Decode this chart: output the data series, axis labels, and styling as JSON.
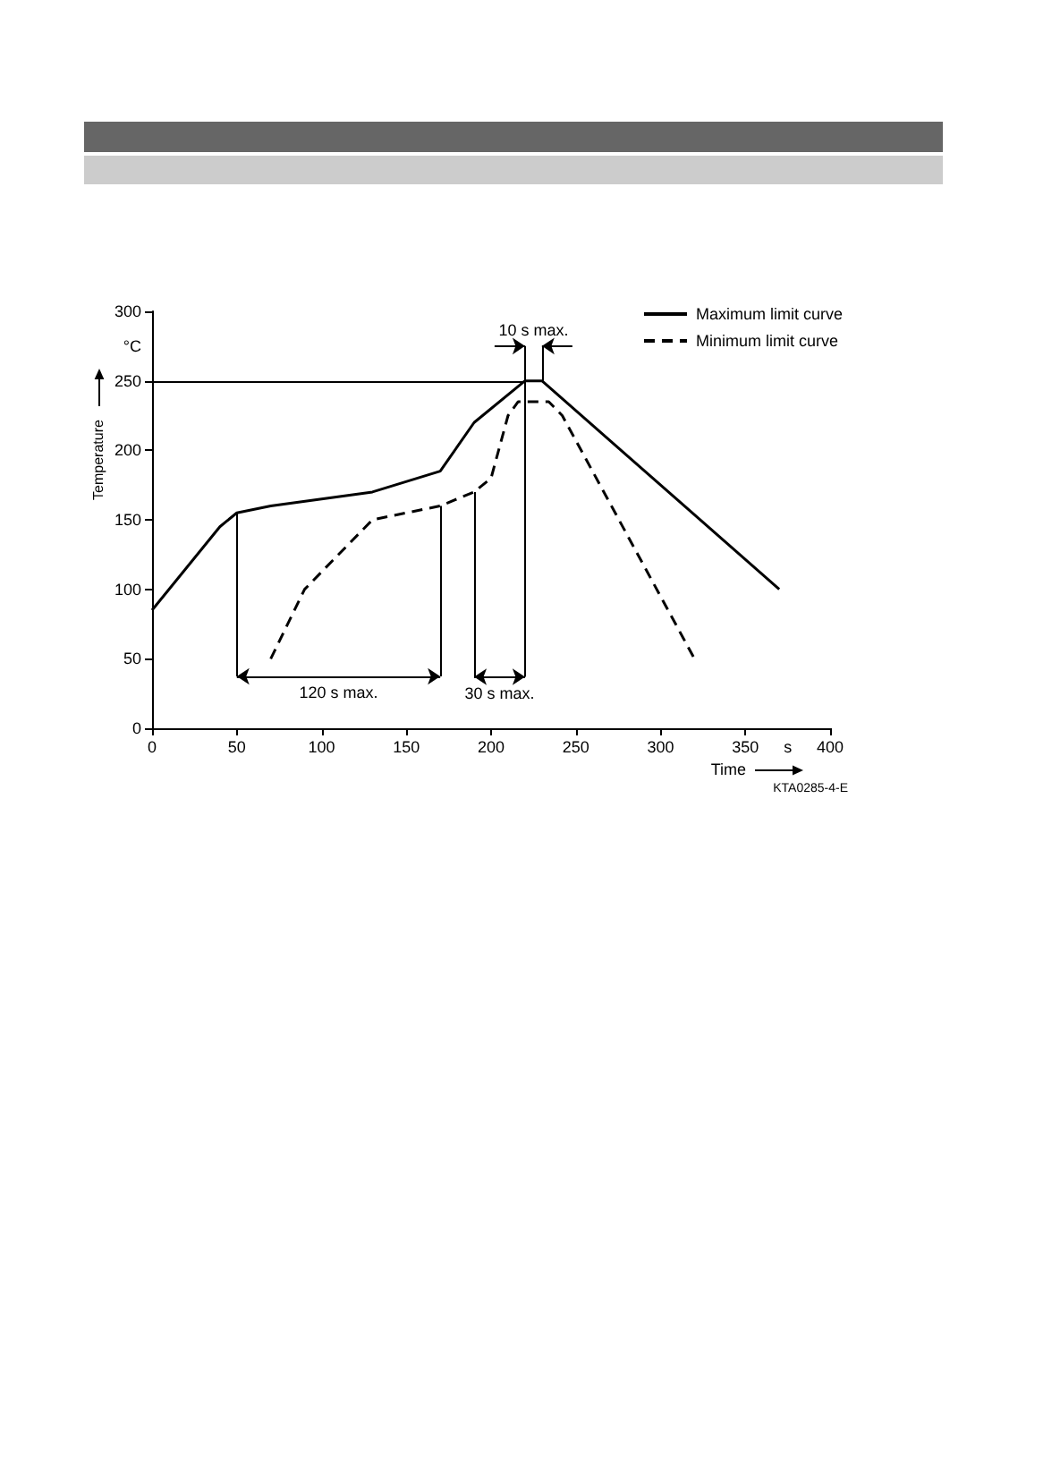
{
  "chart_data": {
    "type": "line",
    "series": [
      {
        "name": "Maximum limit curve",
        "color": "#000000",
        "x": [
          0,
          40,
          50,
          70,
          130,
          170,
          190,
          220,
          230,
          370
        ],
        "values": [
          85,
          145,
          155,
          160,
          170,
          185,
          220,
          250,
          250,
          100
        ]
      },
      {
        "name": "Minimum limit curve",
        "color": "#000000",
        "line_style": "dashed",
        "x": [
          70,
          90,
          130,
          170,
          190,
          200,
          210,
          216,
          234,
          242,
          320
        ],
        "values": [
          50,
          100,
          150,
          160,
          170,
          180,
          225,
          235,
          235,
          225,
          50
        ]
      }
    ],
    "xlabel": "Time",
    "ylabel": "Temperature",
    "xlim": [
      0,
      400
    ],
    "xticks": [
      0,
      50,
      100,
      150,
      200,
      250,
      300,
      350,
      {
        "value": 375,
        "label": "s"
      },
      400
    ],
    "ylim": [
      0,
      300
    ],
    "yticks": [
      0,
      50,
      100,
      150,
      200,
      250,
      {
        "value": 275,
        "label": "°C"
      },
      300
    ],
    "legend": "top right",
    "line_style": "solid",
    "ref_lines": [
      {
        "axis": "y",
        "value": 250
      },
      {
        "axis": "x",
        "value": 50
      },
      {
        "axis": "x",
        "value": 170
      },
      {
        "axis": "x",
        "value": 190
      },
      {
        "axis": "x",
        "value": 220
      },
      {
        "axis": "x",
        "value": 230
      }
    ],
    "annotations": [
      "120 s max.",
      {
        "text": "30 s max.",
        "x": 190,
        "y": 37
      },
      {
        "text": "10 s max.",
        "x": 220,
        "y": 275
      },
      "KTA0285-4-E"
    ]
  }
}
